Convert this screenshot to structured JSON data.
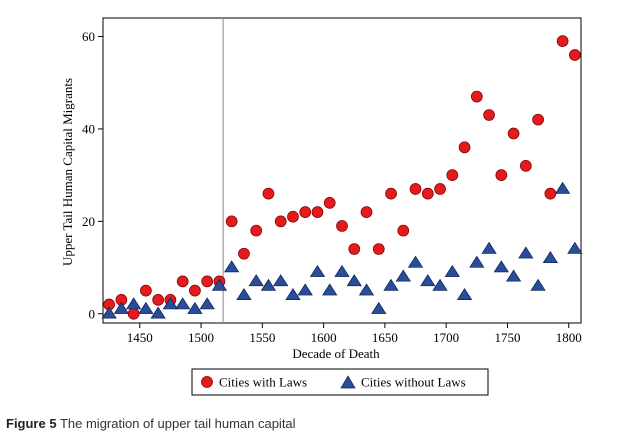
{
  "chart_data": {
    "type": "scatter",
    "xlabel": "Decade of Death",
    "ylabel": "Upper Tail Human Capital Migrants",
    "xlim": [
      1420,
      1810
    ],
    "ylim": [
      -2,
      64
    ],
    "xticks": [
      1450,
      1500,
      1550,
      1600,
      1650,
      1700,
      1750,
      1800
    ],
    "yticks": [
      0,
      20,
      40,
      60
    ],
    "vline": 1518,
    "grid": false,
    "legend_position": "bottom",
    "series": [
      {
        "name": "Cities with Laws",
        "marker": "circle",
        "color": "#e41a1c",
        "x": [
          1425,
          1435,
          1445,
          1455,
          1465,
          1475,
          1485,
          1495,
          1505,
          1515,
          1525,
          1535,
          1545,
          1555,
          1565,
          1575,
          1585,
          1595,
          1605,
          1615,
          1625,
          1635,
          1645,
          1655,
          1665,
          1675,
          1685,
          1695,
          1705,
          1715,
          1725,
          1735,
          1745,
          1755,
          1765,
          1775,
          1785,
          1795,
          1805
        ],
        "y": [
          2,
          3,
          0,
          5,
          3,
          3,
          7,
          5,
          7,
          7,
          20,
          13,
          18,
          26,
          20,
          21,
          22,
          22,
          24,
          19,
          14,
          22,
          14,
          26,
          18,
          27,
          26,
          27,
          30,
          36,
          47,
          43,
          30,
          39,
          32,
          42,
          26,
          59,
          56
        ]
      },
      {
        "name": "Cities without Laws",
        "marker": "triangle",
        "color": "#2a4d9b",
        "x": [
          1425,
          1435,
          1445,
          1455,
          1465,
          1475,
          1485,
          1495,
          1505,
          1515,
          1525,
          1535,
          1545,
          1555,
          1565,
          1575,
          1585,
          1595,
          1605,
          1615,
          1625,
          1635,
          1645,
          1655,
          1665,
          1675,
          1685,
          1695,
          1705,
          1715,
          1725,
          1735,
          1745,
          1755,
          1765,
          1775,
          1785,
          1795,
          1805
        ],
        "y": [
          0,
          1,
          2,
          1,
          0,
          2,
          2,
          1,
          2,
          6,
          10,
          4,
          7,
          6,
          7,
          4,
          5,
          9,
          5,
          9,
          7,
          5,
          1,
          6,
          8,
          11,
          7,
          6,
          9,
          4,
          11,
          14,
          10,
          8,
          13,
          6,
          12,
          27,
          14
        ]
      }
    ]
  },
  "caption": {
    "label": "Figure 5",
    "text": "The migration of upper tail human capital"
  }
}
